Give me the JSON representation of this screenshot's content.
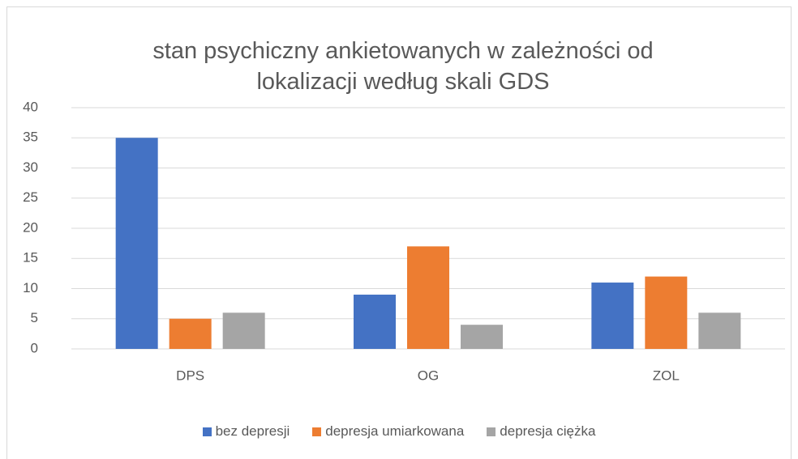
{
  "chart_data": {
    "type": "bar",
    "title": "stan psychiczny ankietowanych w zależności od lokalizacji według skali GDS",
    "categories": [
      "DPS",
      "OG",
      "ZOL"
    ],
    "series": [
      {
        "name": "bez depresji",
        "color": "#4472c4",
        "values": [
          35,
          9,
          11
        ]
      },
      {
        "name": "depresja umiarkowana",
        "color": "#ed7d31",
        "values": [
          5,
          17,
          12
        ]
      },
      {
        "name": "depresja ciężka",
        "color": "#a5a5a5",
        "values": [
          6,
          4,
          6
        ]
      }
    ],
    "ylim": [
      0,
      40
    ],
    "yticks": [
      0,
      5,
      10,
      15,
      20,
      25,
      30,
      35,
      40
    ],
    "grid": true,
    "legend": "bottom"
  }
}
